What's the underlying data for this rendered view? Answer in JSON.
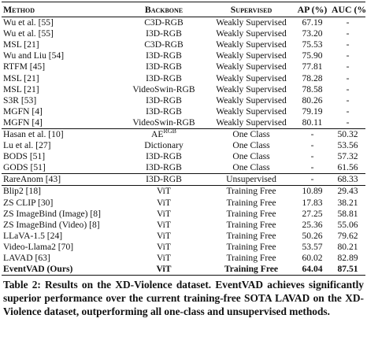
{
  "table": {
    "header": [
      "Method",
      "Backbone",
      "Supervised",
      "AP (%)",
      "AUC (%)"
    ],
    "groups": [
      [
        [
          "Wu et al. [55]",
          "C3D-RGB",
          "Weakly Supervised",
          "67.19",
          "-"
        ],
        [
          "Wu et al. [55]",
          "I3D-RGB",
          "Weakly Supervised",
          "73.20",
          "-"
        ],
        [
          "MSL [21]",
          "C3D-RGB",
          "Weakly Supervised",
          "75.53",
          "-"
        ],
        [
          "Wu and Liu [54]",
          "I3D-RGB",
          "Weakly Supervised",
          "75.90",
          "-"
        ],
        [
          "RTFM [45]",
          "I3D-RGB",
          "Weakly Supervised",
          "77.81",
          "-"
        ],
        [
          "MSL [21]",
          "I3D-RGB",
          "Weakly Supervised",
          "78.28",
          "-"
        ],
        [
          "MSL [21]",
          "VideoSwin-RGB",
          "Weakly Supervised",
          "78.58",
          "-"
        ],
        [
          "S3R [53]",
          "I3D-RGB",
          "Weakly Supervised",
          "80.26",
          "-"
        ],
        [
          "MGFN [4]",
          "I3D-RGB",
          "Weakly Supervised",
          "79.19",
          "-"
        ],
        [
          "MGFN [4]",
          "VideoSwin-RGB",
          "Weakly Supervised",
          "80.11",
          "-"
        ]
      ],
      [
        [
          "Hasan et al. [10]",
          {
            "text": "AE",
            "sup": "RGB"
          },
          "One Class",
          "-",
          "50.32"
        ],
        [
          "Lu et al. [27]",
          "Dictionary",
          "One Class",
          "-",
          "53.56"
        ],
        [
          "BODS [51]",
          "I3D-RGB",
          "One Class",
          "-",
          "57.32"
        ],
        [
          "GODS [51]",
          "I3D-RGB",
          "One Class",
          "-",
          "61.56"
        ]
      ],
      [
        [
          "RareAnom [43]",
          "I3D-RGB",
          "Unsupervised",
          "-",
          "68.33"
        ]
      ],
      [
        [
          "Blip2 [18]",
          "ViT",
          "Training Free",
          "10.89",
          "29.43"
        ],
        [
          "ZS CLIP [30]",
          "ViT",
          "Training Free",
          "17.83",
          "38.21"
        ],
        [
          "ZS ImageBind (Image) [8]",
          "ViT",
          "Training Free",
          "27.25",
          "58.81"
        ],
        [
          "ZS ImageBind (Video) [8]",
          "ViT",
          "Training Free",
          "25.36",
          "55.06"
        ],
        [
          "LLaVA-1.5 [24]",
          "ViT",
          "Training Free",
          "50.26",
          "79.62"
        ],
        [
          "Video-Llama2 [70]",
          "ViT",
          "Training Free",
          "53.57",
          "80.21"
        ],
        [
          "LAVAD [63]",
          "ViT",
          "Training Free",
          "60.02",
          "82.89"
        ],
        [
          "EventVAD (Ours)",
          "ViT",
          "Training Free",
          "64.04",
          "87.51"
        ]
      ]
    ]
  },
  "caption": "Table 2: Results on the XD-Violence dataset. EventVAD achieves significantly superior performance over the current training-free SOTA LAVAD on the XD-Violence dataset, outperforming all one-class and unsupervised methods."
}
